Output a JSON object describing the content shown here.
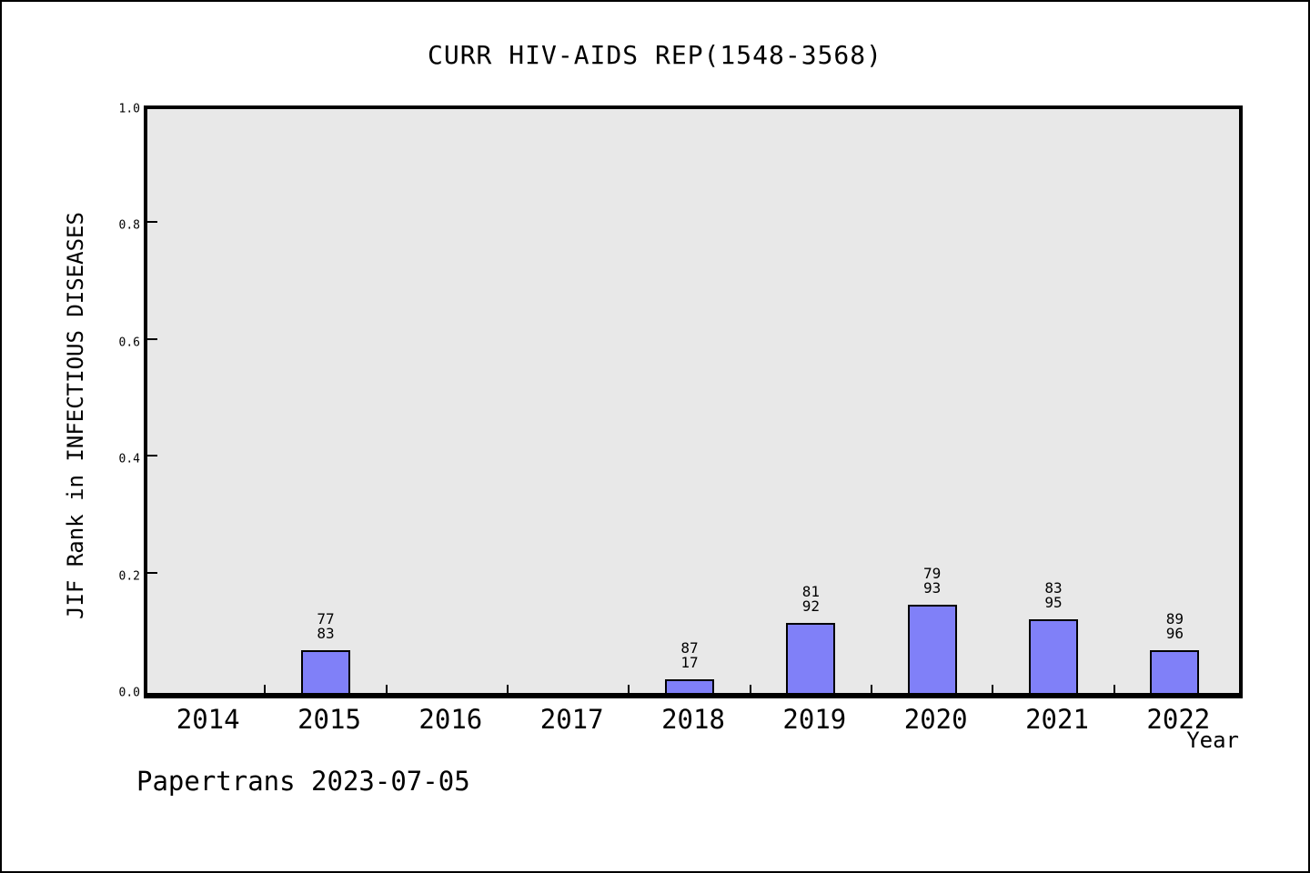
{
  "chart_data": {
    "type": "bar",
    "title": "CURR HIV-AIDS REP(1548-3568)",
    "xlabel": "Year",
    "ylabel": "JIF Rank in INFECTIOUS DISEASES",
    "ylim": [
      0.0,
      1.0
    ],
    "yticks": [
      0.0,
      0.2,
      0.4,
      0.6,
      0.8,
      1.0
    ],
    "categories": [
      "2014",
      "2015",
      "2016",
      "2017",
      "2018",
      "2019",
      "2020",
      "2021",
      "2022"
    ],
    "series": [
      {
        "name": "JIF Rank in INFECTIOUS DISEASES",
        "values": [
          null,
          0.073,
          null,
          null,
          0.024,
          0.12,
          0.151,
          0.126,
          0.073
        ],
        "bar_labels": [
          null,
          {
            "top": "77",
            "bottom": "83"
          },
          null,
          null,
          {
            "top": "87",
            "bottom": "17"
          },
          {
            "top": "81",
            "bottom": "92"
          },
          {
            "top": "79",
            "bottom": "93"
          },
          {
            "top": "83",
            "bottom": "95"
          },
          {
            "top": "89",
            "bottom": "96"
          }
        ]
      }
    ],
    "grid": false,
    "legend": null,
    "bar_color": "#8080f8",
    "bar_edge_color": "#000000",
    "plot_background": "#e8e8e8",
    "figure_background": "#ffffff"
  },
  "footer": {
    "watermark": "Papertrans 2023-07-05"
  }
}
